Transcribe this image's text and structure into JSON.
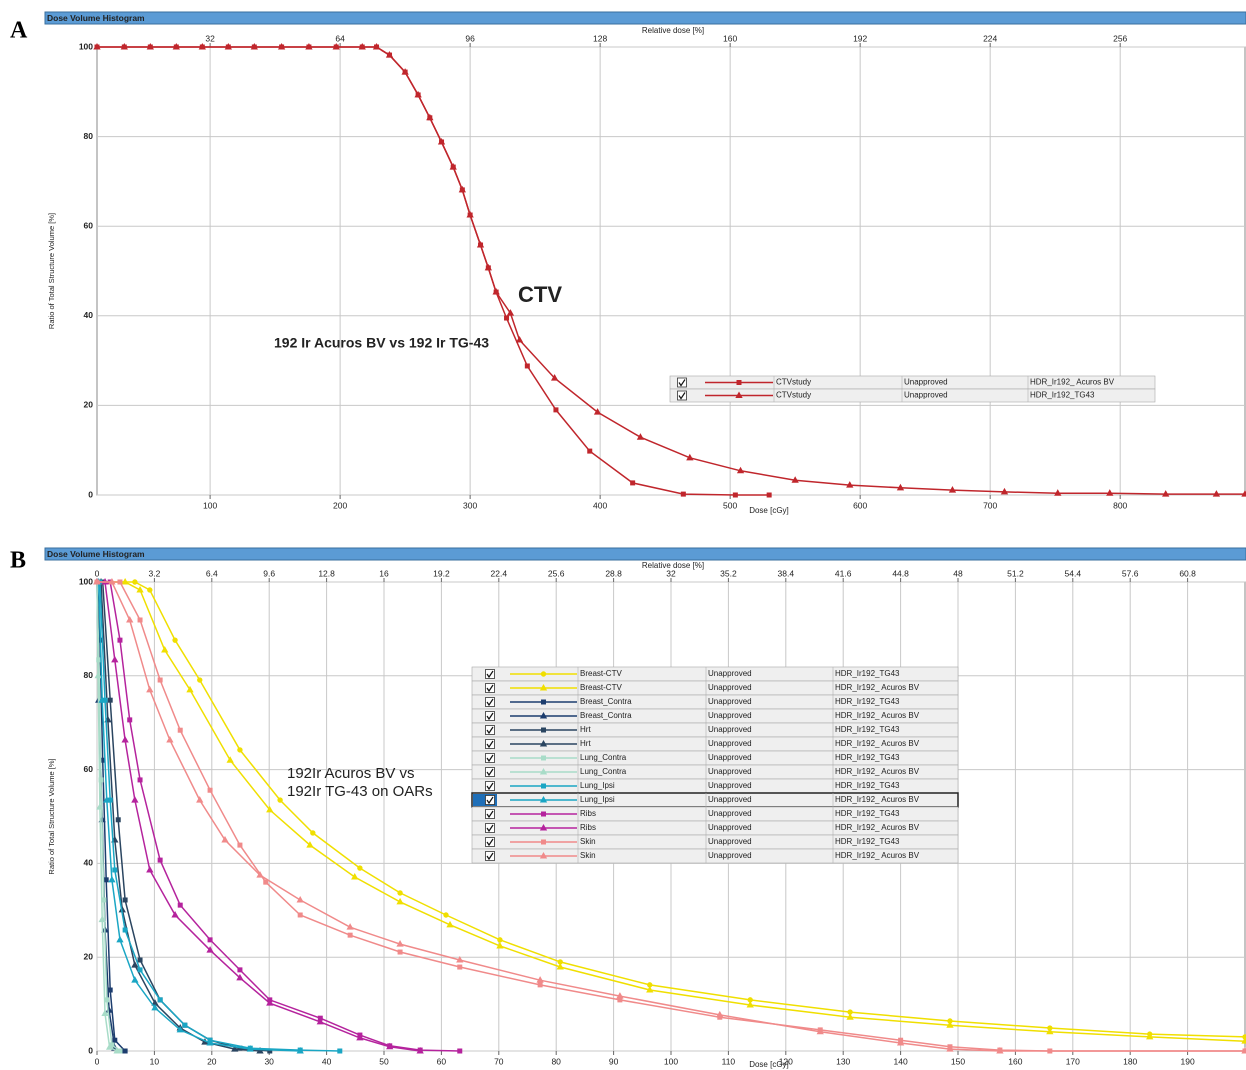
{
  "chart_data": [
    {
      "type": "line",
      "panel": "A",
      "title": "Dose Volume Histogram",
      "xlabel": "Dose [cGy]",
      "x2label": "Relative dose [%]",
      "ylabel": "Ratio of Total Structure Volume [%]",
      "xlim": [
        13,
        896
      ],
      "xticks": [
        100,
        200,
        300,
        400,
        500,
        600,
        700,
        800
      ],
      "x2lim": [
        4.16,
        286.72
      ],
      "x2ticks": [
        32,
        64,
        96,
        128,
        160,
        192,
        224,
        256
      ],
      "ylim": [
        0,
        100
      ],
      "yticks": [
        0,
        20,
        40,
        60,
        80,
        100
      ],
      "grid": true,
      "annotations": [
        {
          "text": "CTV",
          "color": "#d42020"
        },
        {
          "text": "192 Ir Acuros BV  vs 192 Ir TG-43",
          "color": "#111111"
        }
      ],
      "series": [
        {
          "name": "CTVstudy",
          "status": "Unapproved",
          "plan": "HDR_Ir192_ Acuros BV",
          "color": "#c0262c",
          "marker": "square",
          "x": [
            13,
            34,
            54,
            74,
            94,
            114,
            134,
            155,
            176,
            197,
            217,
            228,
            238,
            250,
            260,
            269,
            278,
            287,
            294,
            300,
            308,
            314,
            320,
            328,
            344,
            366,
            392,
            425,
            464,
            504,
            530
          ],
          "values": [
            100,
            100,
            100,
            100,
            100,
            100,
            100,
            100,
            100,
            100,
            100,
            100,
            98.2,
            94.4,
            89.3,
            84.2,
            78.8,
            73.2,
            68.1,
            62.5,
            55.8,
            50.7,
            45.3,
            39.5,
            28.8,
            19.0,
            9.8,
            2.7,
            0.2,
            0,
            0
          ]
        },
        {
          "name": "CTVstudy",
          "status": "Unapproved",
          "plan": "HDR_Ir192_TG43",
          "color": "#c0262c",
          "marker": "triangle",
          "x": [
            13,
            34,
            54,
            74,
            94,
            114,
            134,
            155,
            176,
            197,
            217,
            228,
            238,
            250,
            260,
            269,
            278,
            287,
            294,
            300,
            308,
            314,
            320,
            331,
            338,
            365,
            398,
            431,
            469,
            508,
            550,
            592,
            631,
            671,
            711,
            752,
            792,
            835,
            874,
            896
          ],
          "values": [
            100,
            100,
            100,
            100,
            100,
            100,
            100,
            100,
            100,
            100,
            100,
            100,
            98.2,
            94.4,
            89.3,
            84.2,
            78.8,
            73.2,
            68.1,
            62.5,
            55.8,
            50.7,
            45.3,
            40.6,
            34.6,
            26.1,
            18.5,
            12.9,
            8.3,
            5.4,
            3.3,
            2.2,
            1.6,
            1.1,
            0.7,
            0.4,
            0.4,
            0.2,
            0.2,
            0.2
          ]
        }
      ]
    },
    {
      "type": "line",
      "panel": "B",
      "title": "Dose Volume Histogram",
      "xlabel": "Dose [cGy]",
      "x2label": "Relative dose [%]",
      "ylabel": "Ratio of Total Structure Volume [%]",
      "xlim": [
        0,
        200
      ],
      "xticks": [
        0,
        10,
        20,
        30,
        40,
        50,
        60,
        70,
        80,
        90,
        100,
        110,
        120,
        130,
        140,
        150,
        160,
        170,
        180,
        190
      ],
      "x2lim": [
        0,
        64
      ],
      "x2ticks": [
        0,
        3.2,
        6.4,
        9.6,
        12.8,
        16,
        19.2,
        22.4,
        25.6,
        28.8,
        32,
        35.2,
        38.4,
        41.6,
        44.8,
        48,
        51.2,
        54.4,
        57.6,
        60.8
      ],
      "ylim": [
        0,
        100
      ],
      "yticks": [
        0,
        20,
        40,
        60,
        80,
        100
      ],
      "grid": true,
      "annotations": [
        {
          "text": "192Ir Acuros BV vs",
          "color": "#a83232"
        },
        {
          "text": "192Ir TG-43 on OARs",
          "color": "#a83232"
        }
      ],
      "series": [
        {
          "name": "Breast-CTV",
          "status": "Unapproved",
          "plan": "HDR_Ir192_TG43",
          "color": "#f0df00",
          "marker": "circle",
          "x": [
            0,
            6.6,
            9.2,
            13.6,
            17.9,
            24.9,
            31.9,
            37.6,
            45.8,
            52.8,
            60.8,
            70.2,
            80.7,
            96.3,
            113.8,
            131.2,
            148.6,
            166,
            183.4,
            200
          ],
          "values": [
            100,
            100,
            98.3,
            87.6,
            79.1,
            64.2,
            53.5,
            46.5,
            39.0,
            33.7,
            29.0,
            23.7,
            19.0,
            14.1,
            10.9,
            8.3,
            6.4,
            4.9,
            3.6,
            3.0
          ]
        },
        {
          "name": "Breast-CTV",
          "status": "Unapproved",
          "plan": "HDR_Ir192_ Acuros BV",
          "color": "#f0df00",
          "marker": "triangle",
          "x": [
            0,
            4.9,
            7.5,
            11.8,
            16.2,
            23.2,
            30.1,
            37.1,
            44.9,
            52.8,
            61.5,
            70.2,
            80.7,
            96.3,
            113.8,
            131.2,
            148.6,
            166,
            183.4,
            200
          ],
          "values": [
            100,
            100,
            98.3,
            85.5,
            77,
            62,
            51.4,
            43.9,
            37.1,
            31.8,
            26.9,
            22.4,
            17.9,
            13.0,
            9.8,
            7.2,
            5.5,
            4.1,
            3.0,
            2.1
          ]
        },
        {
          "name": "Breast_Contra",
          "status": "Unapproved",
          "plan": "HDR_Ir192_TG43",
          "color": "#1c3d6e",
          "marker": "square",
          "x": [
            0,
            0.5,
            1,
            1.6,
            2.3,
            3.1,
            4.9
          ],
          "values": [
            100,
            87.6,
            62,
            36.5,
            13,
            2.3,
            0
          ]
        },
        {
          "name": "Breast_Contra",
          "status": "Unapproved",
          "plan": "HDR_Ir192_ Acuros BV",
          "color": "#1c3d6e",
          "marker": "triangle",
          "x": [
            0,
            0.3,
            0.9,
            1.4,
            2.1,
            3.1,
            4.4
          ],
          "values": [
            100,
            74.8,
            49.3,
            25.8,
            8.7,
            0.6,
            0
          ]
        },
        {
          "name": "Hrt",
          "status": "Unapproved",
          "plan": "HDR_Ir192_TG43",
          "color": "#2a4560",
          "marker": "square",
          "x": [
            0,
            1,
            2.3,
            3.7,
            4.9,
            7.5,
            11,
            15.3,
            19.7,
            24.9,
            30.1
          ],
          "values": [
            100,
            100,
            74.8,
            49.3,
            32.2,
            19.4,
            10.9,
            5.5,
            2.3,
            0.6,
            0
          ]
        },
        {
          "name": "Hrt",
          "status": "Unapproved",
          "plan": "HDR_Ir192_ Acuros BV",
          "color": "#2a4560",
          "marker": "triangle",
          "x": [
            0,
            0.7,
            1.9,
            3.1,
            4.4,
            6.6,
            10.1,
            14.5,
            18.8,
            24,
            28.4
          ],
          "values": [
            100,
            100,
            70.6,
            45,
            30.1,
            18.3,
            10.2,
            4.9,
            1.9,
            0.4,
            0
          ]
        },
        {
          "name": "Lung_Contra",
          "status": "Unapproved",
          "plan": "HDR_Ir192_TG43",
          "color": "#a8dcc8",
          "marker": "square",
          "x": [
            0,
            0.3,
            0.7,
            1.2,
            1.7,
            2.6,
            4
          ],
          "values": [
            100,
            83.4,
            57.8,
            32.2,
            10.9,
            1.3,
            0
          ]
        },
        {
          "name": "Lung_Contra",
          "status": "Unapproved",
          "plan": "HDR_Ir192_ Acuros BV",
          "color": "#a8dcc8",
          "marker": "triangle",
          "x": [
            0,
            0.2,
            0.5,
            0.9,
            1.4,
            2.2,
            3.5
          ],
          "values": [
            100,
            80,
            52,
            28,
            8,
            0.8,
            0
          ]
        },
        {
          "name": "Lung_Ipsi",
          "status": "Unapproved",
          "plan": "HDR_Ir192_TG43",
          "color": "#1aa6c4",
          "marker": "square",
          "x": [
            0,
            0.5,
            1.4,
            2.3,
            3.1,
            4.9,
            7.5,
            11,
            15.3,
            19.7,
            26.7,
            35.4,
            42.3
          ],
          "values": [
            100,
            100,
            74.8,
            53.5,
            38.6,
            25.8,
            17.3,
            10.9,
            5.5,
            2.3,
            0.6,
            0.2,
            0
          ]
        },
        {
          "name": "Lung_Ipsi",
          "status": "Unapproved",
          "plan": "HDR_Ir192_ Acuros BV",
          "color": "#1aa6c4",
          "marker": "triangle",
          "selected": true,
          "x": [
            0,
            0.3,
            0.9,
            1.7,
            2.6,
            4,
            6.6,
            10.1,
            14.5,
            19.7,
            26.7,
            35.4
          ],
          "values": [
            100,
            100,
            74.8,
            53.5,
            36.5,
            23.7,
            15.1,
            9.2,
            4.5,
            1.7,
            0.4,
            0
          ]
        },
        {
          "name": "Ribs",
          "status": "Unapproved",
          "plan": "HDR_Ir192_TG43",
          "color": "#b5239d",
          "marker": "square",
          "x": [
            0,
            2.3,
            4,
            5.7,
            7.5,
            11,
            14.5,
            19.7,
            24.9,
            30.1,
            38.9,
            45.8,
            51,
            56.3,
            63.2
          ],
          "values": [
            100,
            100,
            87.6,
            70.6,
            57.8,
            40.7,
            31.1,
            23.7,
            17.3,
            10.9,
            7.0,
            3.4,
            1.1,
            0.2,
            0
          ]
        },
        {
          "name": "Ribs",
          "status": "Unapproved",
          "plan": "HDR_Ir192_ Acuros BV",
          "color": "#b5239d",
          "marker": "triangle",
          "x": [
            0,
            1.4,
            3.1,
            4.9,
            6.6,
            9.2,
            13.6,
            19.7,
            24.9,
            30.1,
            38.9,
            45.8,
            51,
            56.3
          ],
          "values": [
            100,
            100,
            83.4,
            66.3,
            53.5,
            38.6,
            29,
            21.5,
            15.6,
            10.2,
            6.2,
            2.8,
            0.9,
            0
          ]
        },
        {
          "name": "Skin",
          "status": "Unapproved",
          "plan": "HDR_Ir192_TG43",
          "color": "#f08a8a",
          "marker": "square",
          "x": [
            0,
            4,
            7.5,
            11,
            14.5,
            19.7,
            24.9,
            29.4,
            35.4,
            44.1,
            52.8,
            63.2,
            77.2,
            91.1,
            108.5,
            126,
            140,
            148.6,
            157.3,
            166,
            200
          ],
          "values": [
            100,
            100,
            91.9,
            79.1,
            68.4,
            55.6,
            43.9,
            36,
            29.0,
            24.7,
            21.1,
            17.9,
            14.1,
            10.9,
            7.2,
            4.5,
            2.3,
            0.9,
            0.2,
            0,
            0
          ]
        },
        {
          "name": "Skin",
          "status": "Unapproved",
          "plan": "HDR_Ir192_ Acuros BV",
          "color": "#f08a8a",
          "marker": "triangle",
          "x": [
            0,
            2.6,
            5.7,
            9.2,
            12.7,
            17.9,
            22.3,
            28.4,
            35.4,
            44.1,
            52.8,
            63.2,
            77.2,
            91.1,
            108.5,
            126,
            140,
            148.6,
            157.3,
            200
          ],
          "values": [
            100,
            100,
            91.9,
            77,
            66.3,
            53.5,
            45,
            37.5,
            32.2,
            26.4,
            22.8,
            19.4,
            15.1,
            11.7,
            7.7,
            4.1,
            1.7,
            0.4,
            0,
            0
          ]
        }
      ]
    }
  ]
}
